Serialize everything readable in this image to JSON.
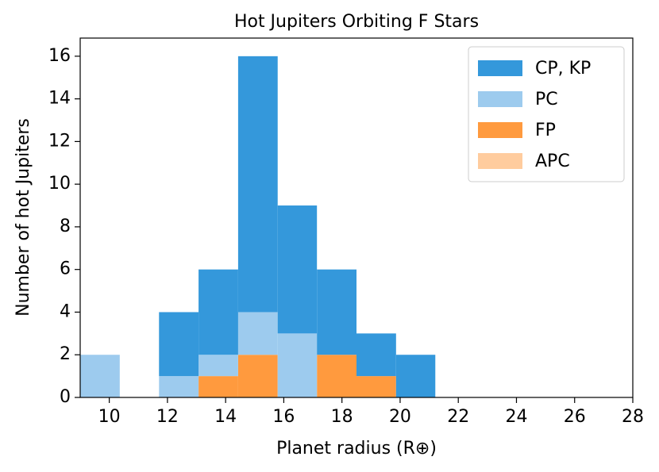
{
  "chart_data": {
    "type": "histogram",
    "title": "Hot Jupiters Orbiting F Stars",
    "x_label": "Planet radius (R⊕)",
    "y_label": "Number of hot Jupiters",
    "bins": [
      9,
      10.36,
      11.71,
      13.07,
      14.43,
      15.79,
      17.14,
      18.5,
      19.86,
      21.21
    ],
    "stacked": true,
    "series": [
      {
        "name": "CP, KP",
        "color": "#3498db",
        "values": [
          0,
          0,
          3,
          4,
          12,
          6,
          4,
          2,
          2
        ]
      },
      {
        "name": "PC",
        "color": "#9dcbee",
        "values": [
          2,
          0,
          1,
          1,
          2,
          3,
          0,
          0,
          0
        ]
      },
      {
        "name": "FP",
        "color": "#ff9a3e",
        "values": [
          0,
          0,
          0,
          1,
          2,
          0,
          2,
          1,
          0
        ]
      },
      {
        "name": "APC",
        "color": "#ffcc9e",
        "values": [
          0,
          0,
          0,
          0,
          0,
          0,
          0,
          0,
          0
        ]
      }
    ],
    "xlim": [
      9,
      28
    ],
    "xticks": [
      10,
      12,
      14,
      16,
      18,
      20,
      22,
      24,
      26,
      28
    ],
    "ylim": [
      0,
      16.85
    ],
    "yticks": [
      0,
      2,
      4,
      6,
      8,
      10,
      12,
      14,
      16
    ],
    "legend": "upper right"
  }
}
